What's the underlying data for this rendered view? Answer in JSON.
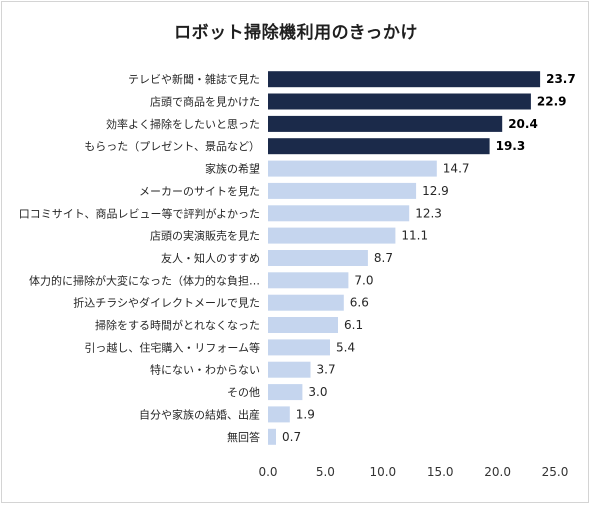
{
  "chart_data": {
    "type": "bar",
    "orientation": "horizontal",
    "title": "ロボット掃除機利用のきっかけ",
    "categories": [
      "テレビや新聞・雑誌で見た",
      "店頭で商品を見かけた",
      "効率よく掃除をしたいと思った",
      "もらった（プレゼント、景品など）",
      "家族の希望",
      "メーカーのサイトを見た",
      "口コミサイト、商品レビュー等で評判がよかった",
      "店頭の実演販売を見た",
      "友人・知人のすすめ",
      "体力的に掃除が大変になった（体力的な負担…",
      "折込チラシやダイレクトメールで見た",
      "掃除をする時間がとれなくなった",
      "引っ越し、住宅購入・リフォーム等",
      "特にない・わからない",
      "その他",
      "自分や家族の結婚、出産",
      "無回答"
    ],
    "values": [
      23.7,
      22.9,
      20.4,
      19.3,
      14.7,
      12.9,
      12.3,
      11.1,
      8.7,
      7.0,
      6.6,
      6.1,
      5.4,
      3.7,
      3.0,
      1.9,
      0.7
    ],
    "value_labels": [
      "23.7",
      "22.9",
      "20.4",
      "19.3",
      "14.7",
      "12.9",
      "12.3",
      "11.1",
      "8.7",
      "7.0",
      "6.6",
      "6.1",
      "5.4",
      "3.7",
      "3.0",
      "1.9",
      "0.7"
    ],
    "highlight_count": 4,
    "xlim": [
      0,
      25
    ],
    "xticks": [
      "0.0",
      "5.0",
      "10.0",
      "15.0",
      "20.0",
      "25.0"
    ],
    "grid": false,
    "colors": {
      "highlight": "#1b2a4a",
      "normal": "#c5d5ee"
    }
  }
}
